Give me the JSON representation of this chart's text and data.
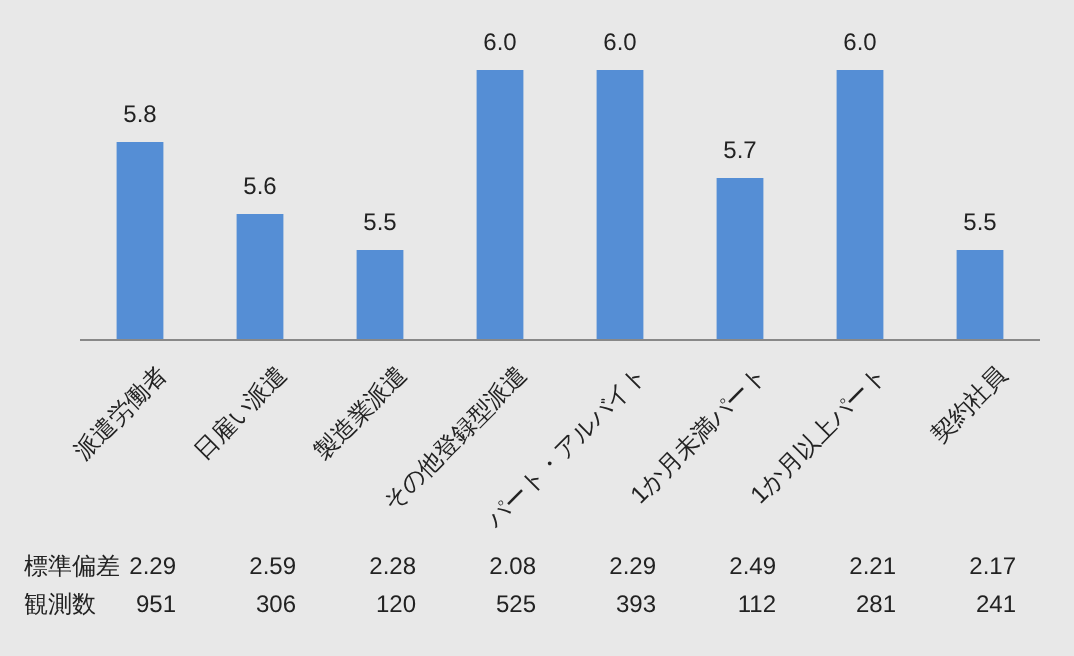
{
  "chart_data": {
    "type": "bar",
    "categories": [
      "派遣労働者",
      "日雇い派遣",
      "製造業派遣",
      "その他登録型派遣",
      "パート・アルバイト",
      "1か月未満パート",
      "1か月以上パート",
      "契約社員"
    ],
    "values": [
      5.8,
      5.6,
      5.5,
      6.0,
      6.0,
      5.7,
      6.0,
      5.5
    ],
    "color": "#558ed5",
    "ylim": [
      5.25,
      6.0
    ],
    "tick_labels": "x",
    "value_labels": [
      "5.8",
      "5.6",
      "5.5",
      "6.0",
      "6.0",
      "5.7",
      "6.0",
      "5.5"
    ],
    "annotations": [
      "標準偏差",
      "2.29",
      "2.59",
      "2.28",
      "2.08",
      "2.29",
      "2.49",
      "2.21",
      "2.17",
      "観測数",
      "951",
      "306",
      "120",
      "525",
      "393",
      "112",
      "281",
      "241"
    ]
  }
}
